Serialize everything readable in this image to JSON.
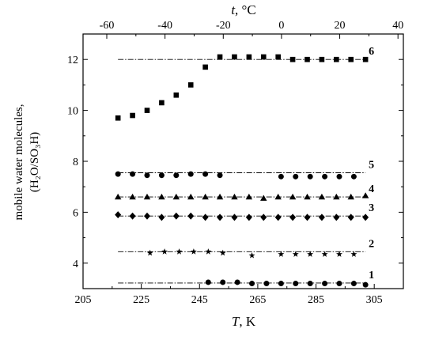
{
  "chart_data": {
    "type": "scatter",
    "xlabel": {
      "var": "T",
      "unit": ", K"
    },
    "x2label": {
      "var": "t",
      "unit": ", °C"
    },
    "ylabel": {
      "line1": "mobile water molecules,",
      "line2": "(H₂O/SO₃H)"
    },
    "xlim": [
      205,
      315
    ],
    "ylim": [
      3,
      13
    ],
    "x_ticks": [
      205,
      225,
      245,
      265,
      285,
      305
    ],
    "x2_ticks": [
      -60,
      -40,
      -20,
      0,
      20,
      40
    ],
    "y_ticks": [
      4,
      6,
      8,
      10,
      12
    ],
    "grid": false,
    "series": [
      {
        "label": "6",
        "marker": "square",
        "fit_level": 12.0,
        "fit_x": [
          217,
          302
        ],
        "x": [
          217,
          222,
          227,
          232,
          237,
          242,
          247,
          252,
          257,
          262,
          267,
          272,
          277,
          282,
          287,
          292,
          297,
          302
        ],
        "y": [
          9.7,
          9.8,
          10.0,
          10.3,
          10.6,
          11.0,
          11.7,
          12.1,
          12.1,
          12.1,
          12.1,
          12.1,
          12.0,
          12.0,
          12.0,
          12.0,
          12.0,
          12.0
        ]
      },
      {
        "label": "5",
        "marker": "circle",
        "fit_level": 7.55,
        "fit_x": [
          217,
          302
        ],
        "x": [
          217,
          222,
          227,
          232,
          237,
          242,
          247,
          252,
          273,
          278,
          283,
          288,
          293,
          298
        ],
        "y": [
          7.5,
          7.5,
          7.45,
          7.45,
          7.45,
          7.5,
          7.5,
          7.45,
          7.4,
          7.4,
          7.4,
          7.4,
          7.4,
          7.4
        ]
      },
      {
        "label": "4",
        "marker": "triangle",
        "fit_level": 6.6,
        "fit_x": [
          217,
          302
        ],
        "x": [
          217,
          222,
          227,
          232,
          237,
          242,
          247,
          252,
          257,
          262,
          267,
          272,
          277,
          282,
          287,
          292,
          297,
          302
        ],
        "y": [
          6.6,
          6.6,
          6.6,
          6.6,
          6.6,
          6.6,
          6.6,
          6.6,
          6.6,
          6.6,
          6.55,
          6.6,
          6.6,
          6.6,
          6.6,
          6.6,
          6.6,
          6.65
        ]
      },
      {
        "label": "3",
        "marker": "diamond",
        "fit_level": 5.85,
        "fit_x": [
          217,
          302
        ],
        "x": [
          217,
          222,
          227,
          232,
          237,
          242,
          247,
          252,
          257,
          262,
          267,
          272,
          277,
          282,
          287,
          292,
          297,
          302
        ],
        "y": [
          5.9,
          5.85,
          5.85,
          5.8,
          5.85,
          5.85,
          5.8,
          5.8,
          5.8,
          5.8,
          5.8,
          5.8,
          5.8,
          5.8,
          5.8,
          5.8,
          5.8,
          5.8
        ]
      },
      {
        "label": "2",
        "marker": "star",
        "fit_level": 4.45,
        "fit_x": [
          217,
          302
        ],
        "x": [
          228,
          233,
          238,
          243,
          248,
          253,
          263,
          273,
          278,
          283,
          288,
          293,
          298
        ],
        "y": [
          4.4,
          4.45,
          4.45,
          4.45,
          4.45,
          4.4,
          4.3,
          4.35,
          4.35,
          4.35,
          4.35,
          4.35,
          4.35
        ]
      },
      {
        "label": "1",
        "marker": "circle",
        "fit_level": 3.22,
        "fit_x": [
          217,
          302
        ],
        "x": [
          248,
          253,
          258,
          263,
          268,
          273,
          278,
          283,
          288,
          293,
          298,
          302
        ],
        "y": [
          3.25,
          3.25,
          3.25,
          3.2,
          3.2,
          3.2,
          3.2,
          3.2,
          3.2,
          3.2,
          3.2,
          3.15
        ]
      }
    ]
  }
}
